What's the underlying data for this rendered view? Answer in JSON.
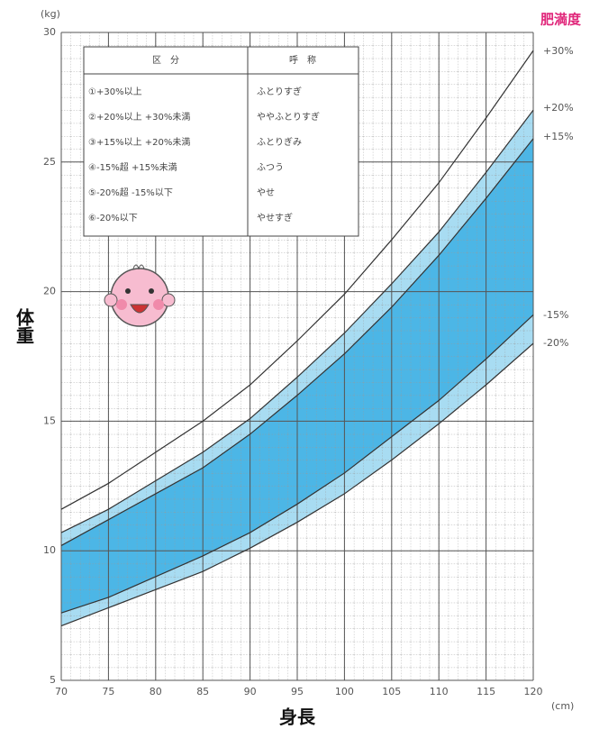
{
  "chart_data": {
    "type": "line",
    "title": "肥満度",
    "xlabel": "身長",
    "ylabel": "体重",
    "xunit": "(cm)",
    "yunit": "(kg)",
    "x": [
      70,
      75,
      80,
      85,
      90,
      95,
      100,
      105,
      110,
      115,
      120
    ],
    "series": [
      {
        "name": "+30%",
        "color": "#333333",
        "values": [
          11.6,
          12.6,
          13.8,
          15.0,
          16.4,
          18.1,
          19.9,
          22.0,
          24.2,
          26.7,
          29.3
        ]
      },
      {
        "name": "+20%",
        "color": "#333333",
        "values": [
          10.7,
          11.6,
          12.7,
          13.8,
          15.1,
          16.7,
          18.4,
          20.3,
          22.3,
          24.6,
          27.0
        ]
      },
      {
        "name": "+15%",
        "color": "#333333",
        "values": [
          10.2,
          11.2,
          12.2,
          13.2,
          14.5,
          16.0,
          17.6,
          19.4,
          21.4,
          23.6,
          25.9
        ]
      },
      {
        "name": "-15%",
        "color": "#333333",
        "values": [
          7.6,
          8.2,
          9.0,
          9.8,
          10.7,
          11.8,
          13.0,
          14.4,
          15.8,
          17.4,
          19.1
        ]
      },
      {
        "name": "-20%",
        "color": "#333333",
        "values": [
          7.1,
          7.8,
          8.5,
          9.2,
          10.1,
          11.1,
          12.2,
          13.5,
          14.9,
          16.4,
          18.0
        ]
      }
    ],
    "bands": [
      {
        "from": 1,
        "to": 4,
        "color": "#a8dcf2"
      },
      {
        "from": 2,
        "to": 3,
        "color": "#4cb6e6"
      }
    ],
    "xlim": [
      70,
      120
    ],
    "xticks": [
      70,
      75,
      80,
      85,
      90,
      95,
      100,
      105,
      110,
      115,
      120
    ],
    "ylim": [
      5,
      30
    ],
    "yticks": [
      5,
      10,
      15,
      20,
      25,
      30
    ],
    "grid": true
  },
  "legend_table": {
    "header": [
      "区　分",
      "呼　称"
    ],
    "rows": [
      [
        "①+30%以上",
        "ふとりすぎ"
      ],
      [
        "②+20%以上 +30%未満",
        "ややふとりすぎ"
      ],
      [
        "③+15%以上 +20%未満",
        "ふとりぎみ"
      ],
      [
        "④-15%超 +15%未満",
        "ふつう"
      ],
      [
        "⑤-20%超 -15%以下",
        "やせ"
      ],
      [
        "⑥-20%以下",
        "やせすぎ"
      ]
    ]
  }
}
